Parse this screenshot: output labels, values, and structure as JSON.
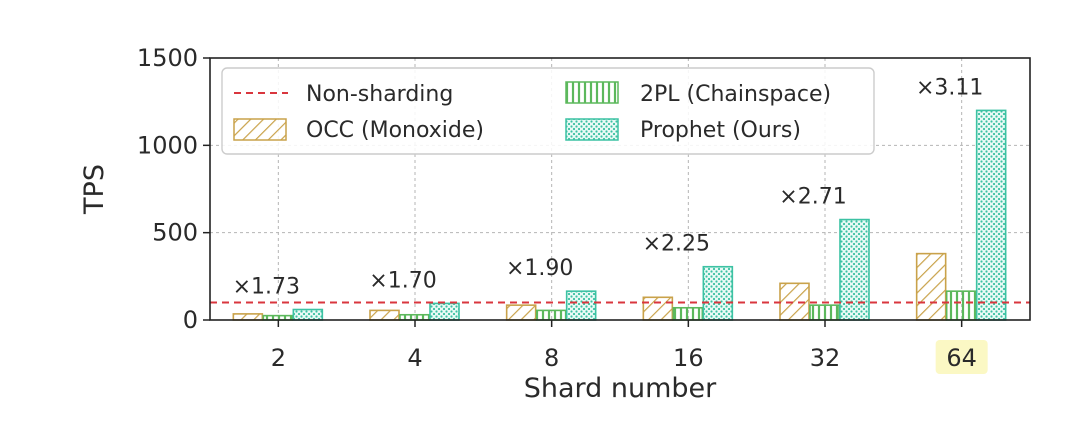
{
  "chart_data": {
    "type": "bar",
    "title": "",
    "xlabel": "Shard number",
    "ylabel": "TPS",
    "ylim": [
      0,
      1500
    ],
    "yticks": [
      0,
      500,
      1000,
      1500
    ],
    "categories": [
      "2",
      "4",
      "8",
      "16",
      "32",
      "64"
    ],
    "highlighted_category": "64",
    "grid": true,
    "legend_position": "top-left",
    "series": [
      {
        "name": "OCC (Monoxide)",
        "values": [
          35,
          55,
          85,
          130,
          210,
          380
        ],
        "color": "#c9a24a",
        "pattern": "hatch"
      },
      {
        "name": "2PL (Chainspace)",
        "values": [
          25,
          30,
          55,
          70,
          85,
          165
        ],
        "color": "#5cb85c",
        "pattern": "vertical-lines"
      },
      {
        "name": "Prophet (Ours)",
        "values": [
          60,
          95,
          165,
          305,
          575,
          1200
        ],
        "color": "#3cc2a3",
        "pattern": "dots"
      }
    ],
    "reference_lines": [
      {
        "name": "Non-sharding",
        "value": 100,
        "color": "#d9363e",
        "style": "dashed"
      }
    ],
    "annotations": [
      "×1.73",
      "×1.70",
      "×1.90",
      "×2.25",
      "×2.71",
      "×3.11"
    ]
  }
}
